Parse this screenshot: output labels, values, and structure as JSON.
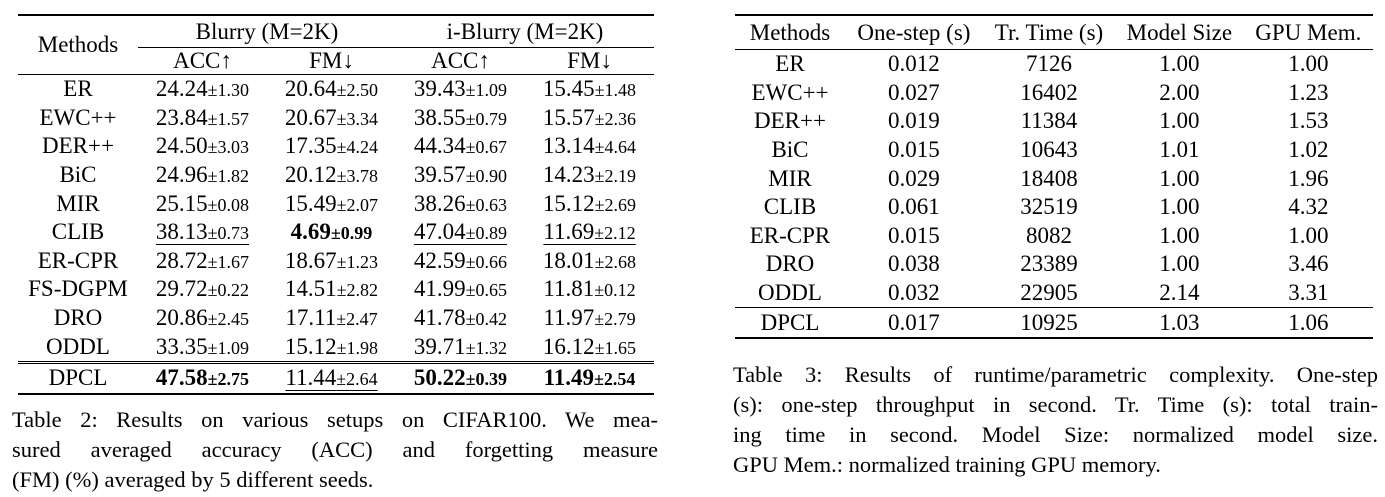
{
  "table2": {
    "header": {
      "methods": "Methods",
      "groups": [
        "Blurry (M=2K)",
        "i-Blurry (M=2K)"
      ],
      "subcols": [
        "ACC↑",
        "FM↓",
        "ACC↑",
        "FM↓"
      ]
    },
    "rows": [
      {
        "method": "ER",
        "cells": [
          [
            "24.24",
            "±1.30"
          ],
          [
            "20.64",
            "±2.50"
          ],
          [
            "39.43",
            "±1.09"
          ],
          [
            "15.45",
            "±1.48"
          ]
        ]
      },
      {
        "method": "EWC++",
        "cells": [
          [
            "23.84",
            "±1.57"
          ],
          [
            "20.67",
            "±3.34"
          ],
          [
            "38.55",
            "±0.79"
          ],
          [
            "15.57",
            "±2.36"
          ]
        ]
      },
      {
        "method": "DER++",
        "cells": [
          [
            "24.50",
            "±3.03"
          ],
          [
            "17.35",
            "±4.24"
          ],
          [
            "44.34",
            "±0.67"
          ],
          [
            "13.14",
            "±4.64"
          ]
        ]
      },
      {
        "method": "BiC",
        "cells": [
          [
            "24.96",
            "±1.82"
          ],
          [
            "20.12",
            "±3.78"
          ],
          [
            "39.57",
            "±0.90"
          ],
          [
            "14.23",
            "±2.19"
          ]
        ]
      },
      {
        "method": "MIR",
        "cells": [
          [
            "25.15",
            "±0.08"
          ],
          [
            "15.49",
            "±2.07"
          ],
          [
            "38.26",
            "±0.63"
          ],
          [
            "15.12",
            "±2.69"
          ]
        ]
      },
      {
        "method": "CLIB",
        "cells": [
          [
            "38.13",
            "±0.73"
          ],
          [
            "4.69",
            "±0.99"
          ],
          [
            "47.04",
            "±0.89"
          ],
          [
            "11.69",
            "±2.12"
          ]
        ]
      },
      {
        "method": "ER-CPR",
        "cells": [
          [
            "28.72",
            "±1.67"
          ],
          [
            "18.67",
            "±1.23"
          ],
          [
            "42.59",
            "±0.66"
          ],
          [
            "18.01",
            "±2.68"
          ]
        ]
      },
      {
        "method": "FS-DGPM",
        "cells": [
          [
            "29.72",
            "±0.22"
          ],
          [
            "14.51",
            "±2.82"
          ],
          [
            "41.99",
            "±0.65"
          ],
          [
            "11.81",
            "±0.12"
          ]
        ]
      },
      {
        "method": "DRO",
        "cells": [
          [
            "20.86",
            "±2.45"
          ],
          [
            "17.11",
            "±2.47"
          ],
          [
            "41.78",
            "±0.42"
          ],
          [
            "11.97",
            "±2.79"
          ]
        ]
      },
      {
        "method": "ODDL",
        "cells": [
          [
            "33.35",
            "±1.09"
          ],
          [
            "15.12",
            "±1.98"
          ],
          [
            "39.71",
            "±1.32"
          ],
          [
            "16.12",
            "±1.65"
          ]
        ]
      },
      {
        "method": "DPCL",
        "cells": [
          [
            "47.58",
            "±2.75"
          ],
          [
            "11.44",
            "±2.64"
          ],
          [
            "50.22",
            "±0.39"
          ],
          [
            "11.49",
            "±2.54"
          ]
        ]
      }
    ],
    "caption_lines": [
      "Table 2: Results on various setups on CIFAR100. We mea-",
      "sured averaged accuracy (ACC) and forgetting measure",
      "(FM) (%) averaged by 5 different seeds."
    ]
  },
  "table3": {
    "headers": [
      "Methods",
      "One-step (s)",
      "Tr. Time (s)",
      "Model Size",
      "GPU Mem."
    ],
    "rows": [
      [
        "ER",
        "0.012",
        "7126",
        "1.00",
        "1.00"
      ],
      [
        "EWC++",
        "0.027",
        "16402",
        "2.00",
        "1.23"
      ],
      [
        "DER++",
        "0.019",
        "11384",
        "1.00",
        "1.53"
      ],
      [
        "BiC",
        "0.015",
        "10643",
        "1.01",
        "1.02"
      ],
      [
        "MIR",
        "0.029",
        "18408",
        "1.00",
        "1.96"
      ],
      [
        "CLIB",
        "0.061",
        "32519",
        "1.00",
        "4.32"
      ],
      [
        "ER-CPR",
        "0.015",
        "8082",
        "1.00",
        "1.00"
      ],
      [
        "DRO",
        "0.038",
        "23389",
        "1.00",
        "3.46"
      ],
      [
        "ODDL",
        "0.032",
        "22905",
        "2.14",
        "3.31"
      ],
      [
        "DPCL",
        "0.017",
        "10925",
        "1.03",
        "1.06"
      ]
    ],
    "caption_lines": [
      "Table 3: Results of runtime/parametric complexity. One-step",
      "(s): one-step throughput in second. Tr. Time (s): total train-",
      "ing time in second. Model Size: normalized model size.",
      "GPU Mem.: normalized training GPU memory."
    ]
  }
}
